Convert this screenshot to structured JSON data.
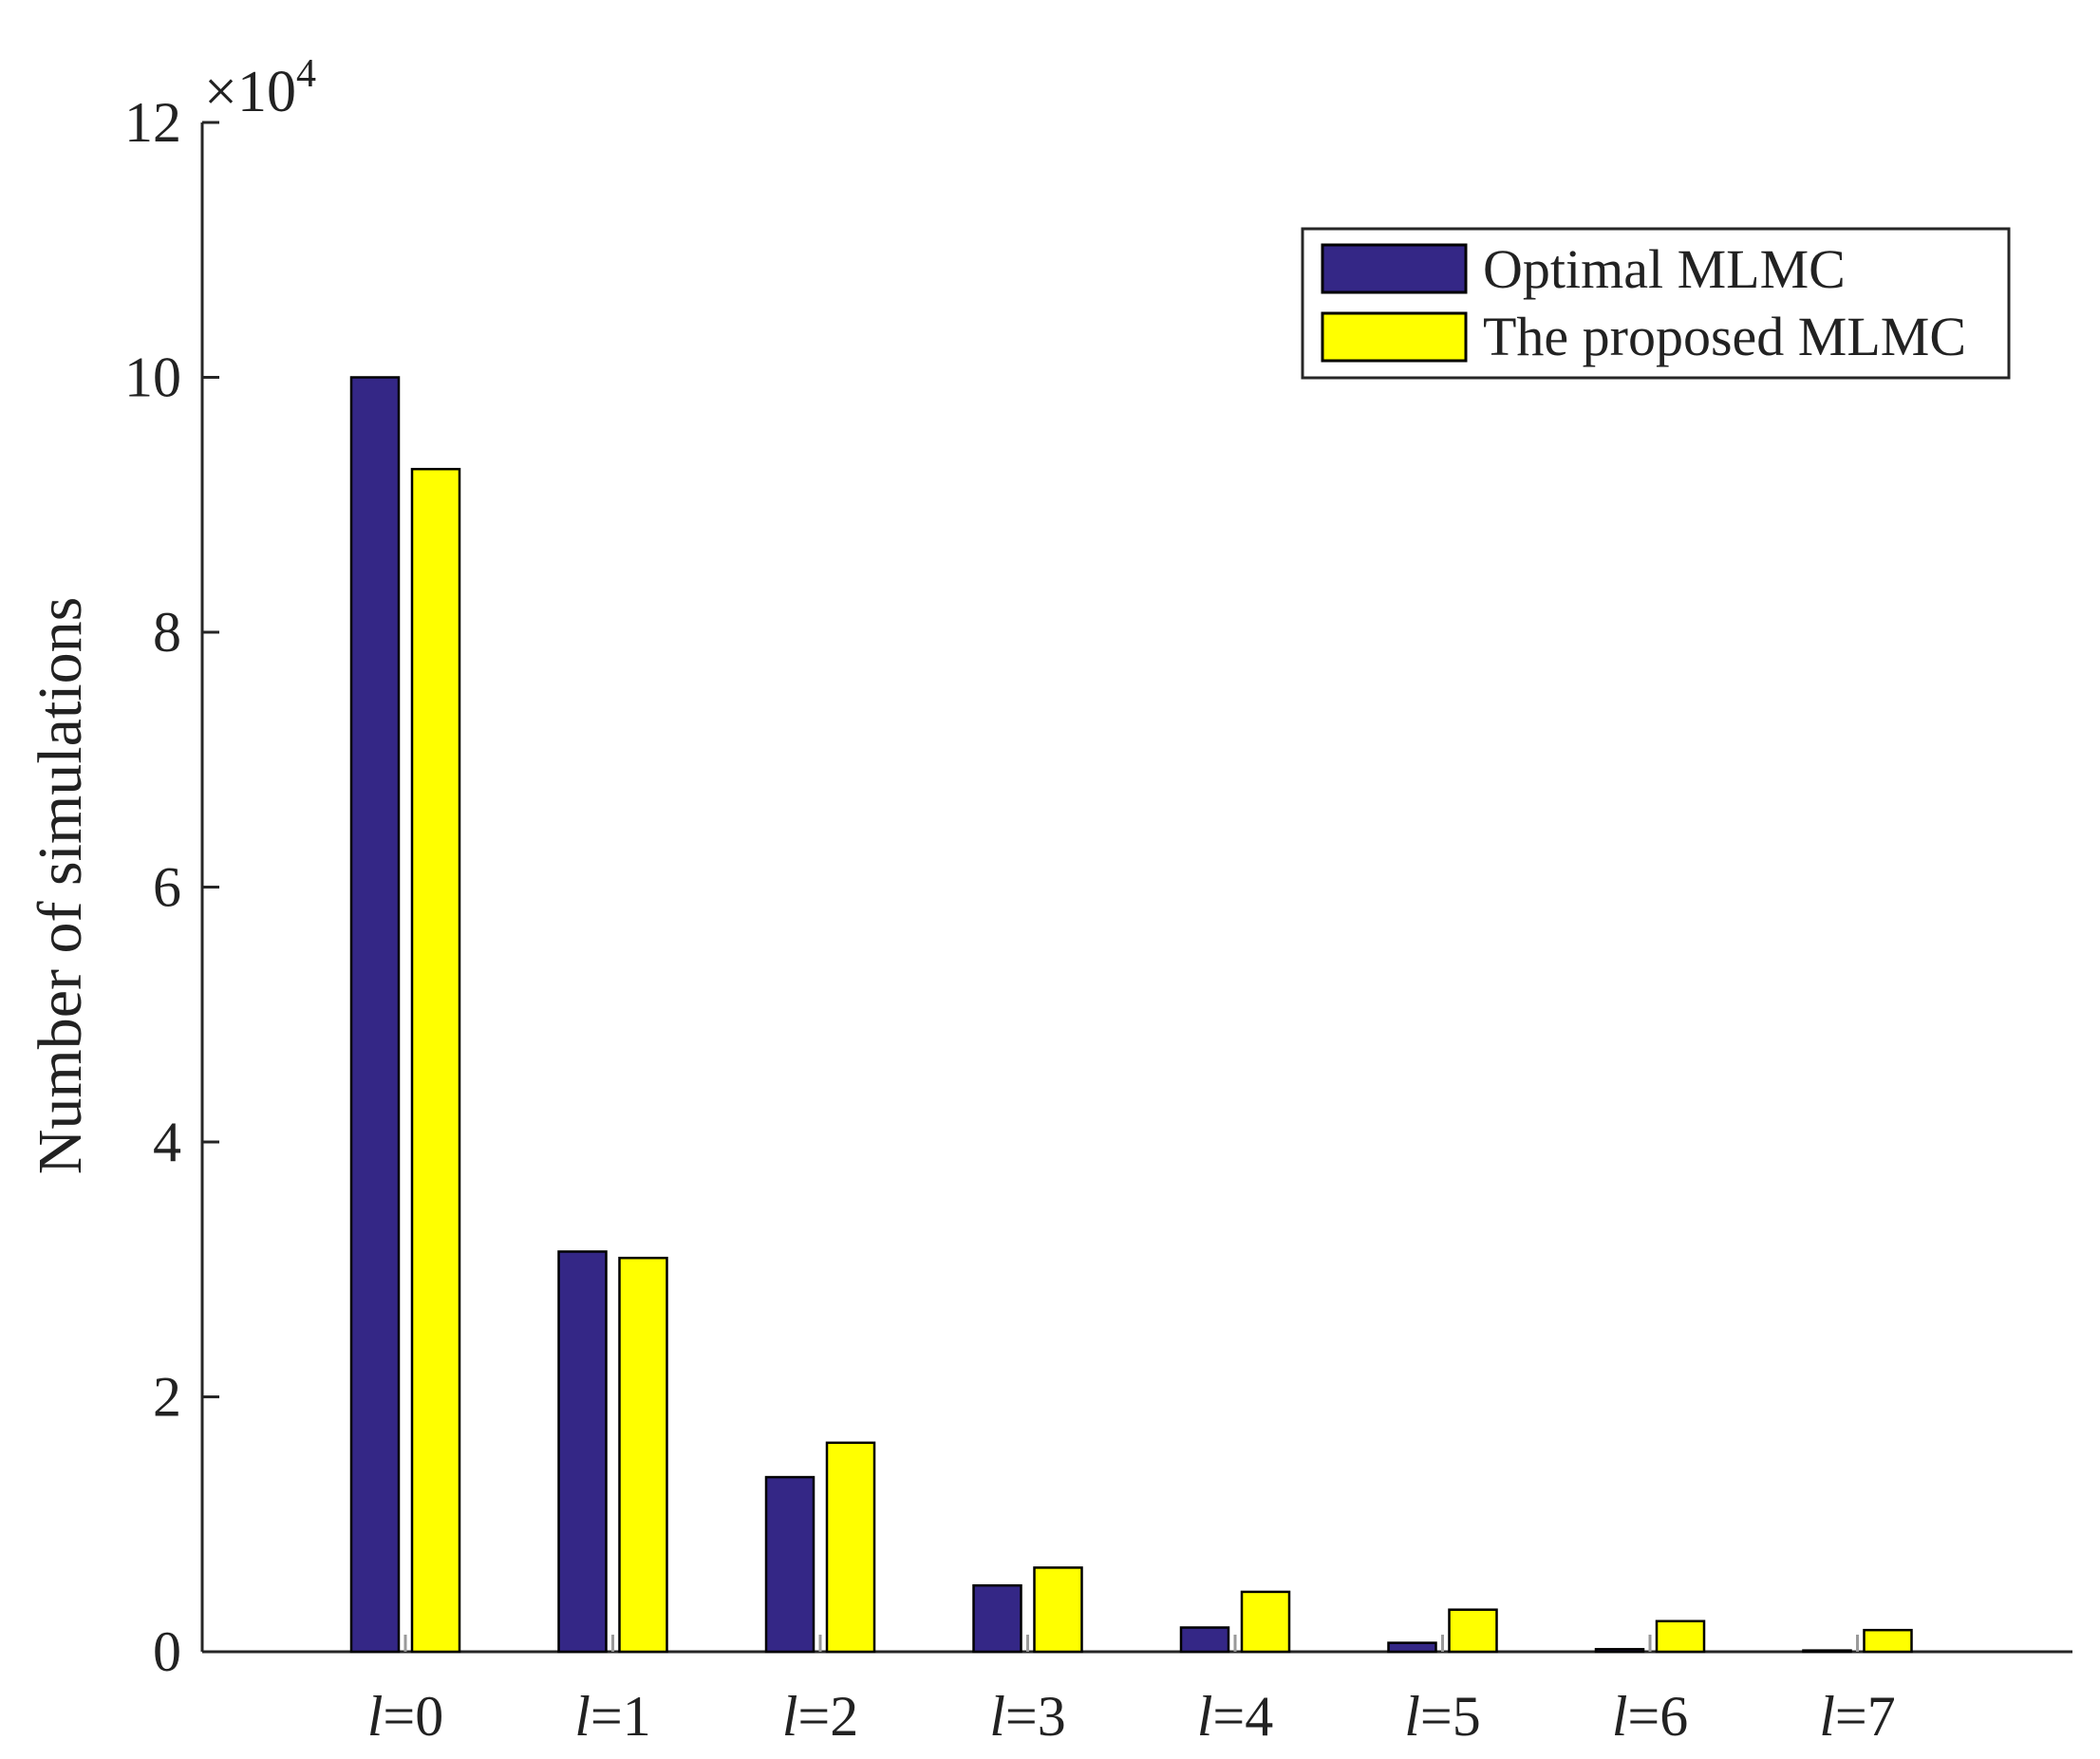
{
  "chart_data": {
    "type": "bar",
    "title": "",
    "xlabel": "",
    "ylabel": "Number of simulations",
    "y_multiplier": "×10",
    "y_exponent": "4",
    "ylim": [
      0,
      12
    ],
    "yticks": [
      "0",
      "2",
      "4",
      "6",
      "8",
      "10",
      "12"
    ],
    "category_var": "l",
    "categories": [
      "=0",
      "=1",
      "=2",
      "=3",
      "=4",
      "=5",
      "=6",
      "=7"
    ],
    "series": [
      {
        "name": "Optimal MLMC",
        "color": "#342786",
        "values": [
          10.0,
          3.14,
          1.37,
          0.52,
          0.19,
          0.07,
          0.02,
          0.01
        ]
      },
      {
        "name": "The proposed MLMC",
        "color": "#ffff00",
        "values": [
          9.28,
          3.09,
          1.64,
          0.66,
          0.47,
          0.33,
          0.24,
          0.17
        ]
      }
    ],
    "legend_position": "top-right",
    "grid": false
  }
}
